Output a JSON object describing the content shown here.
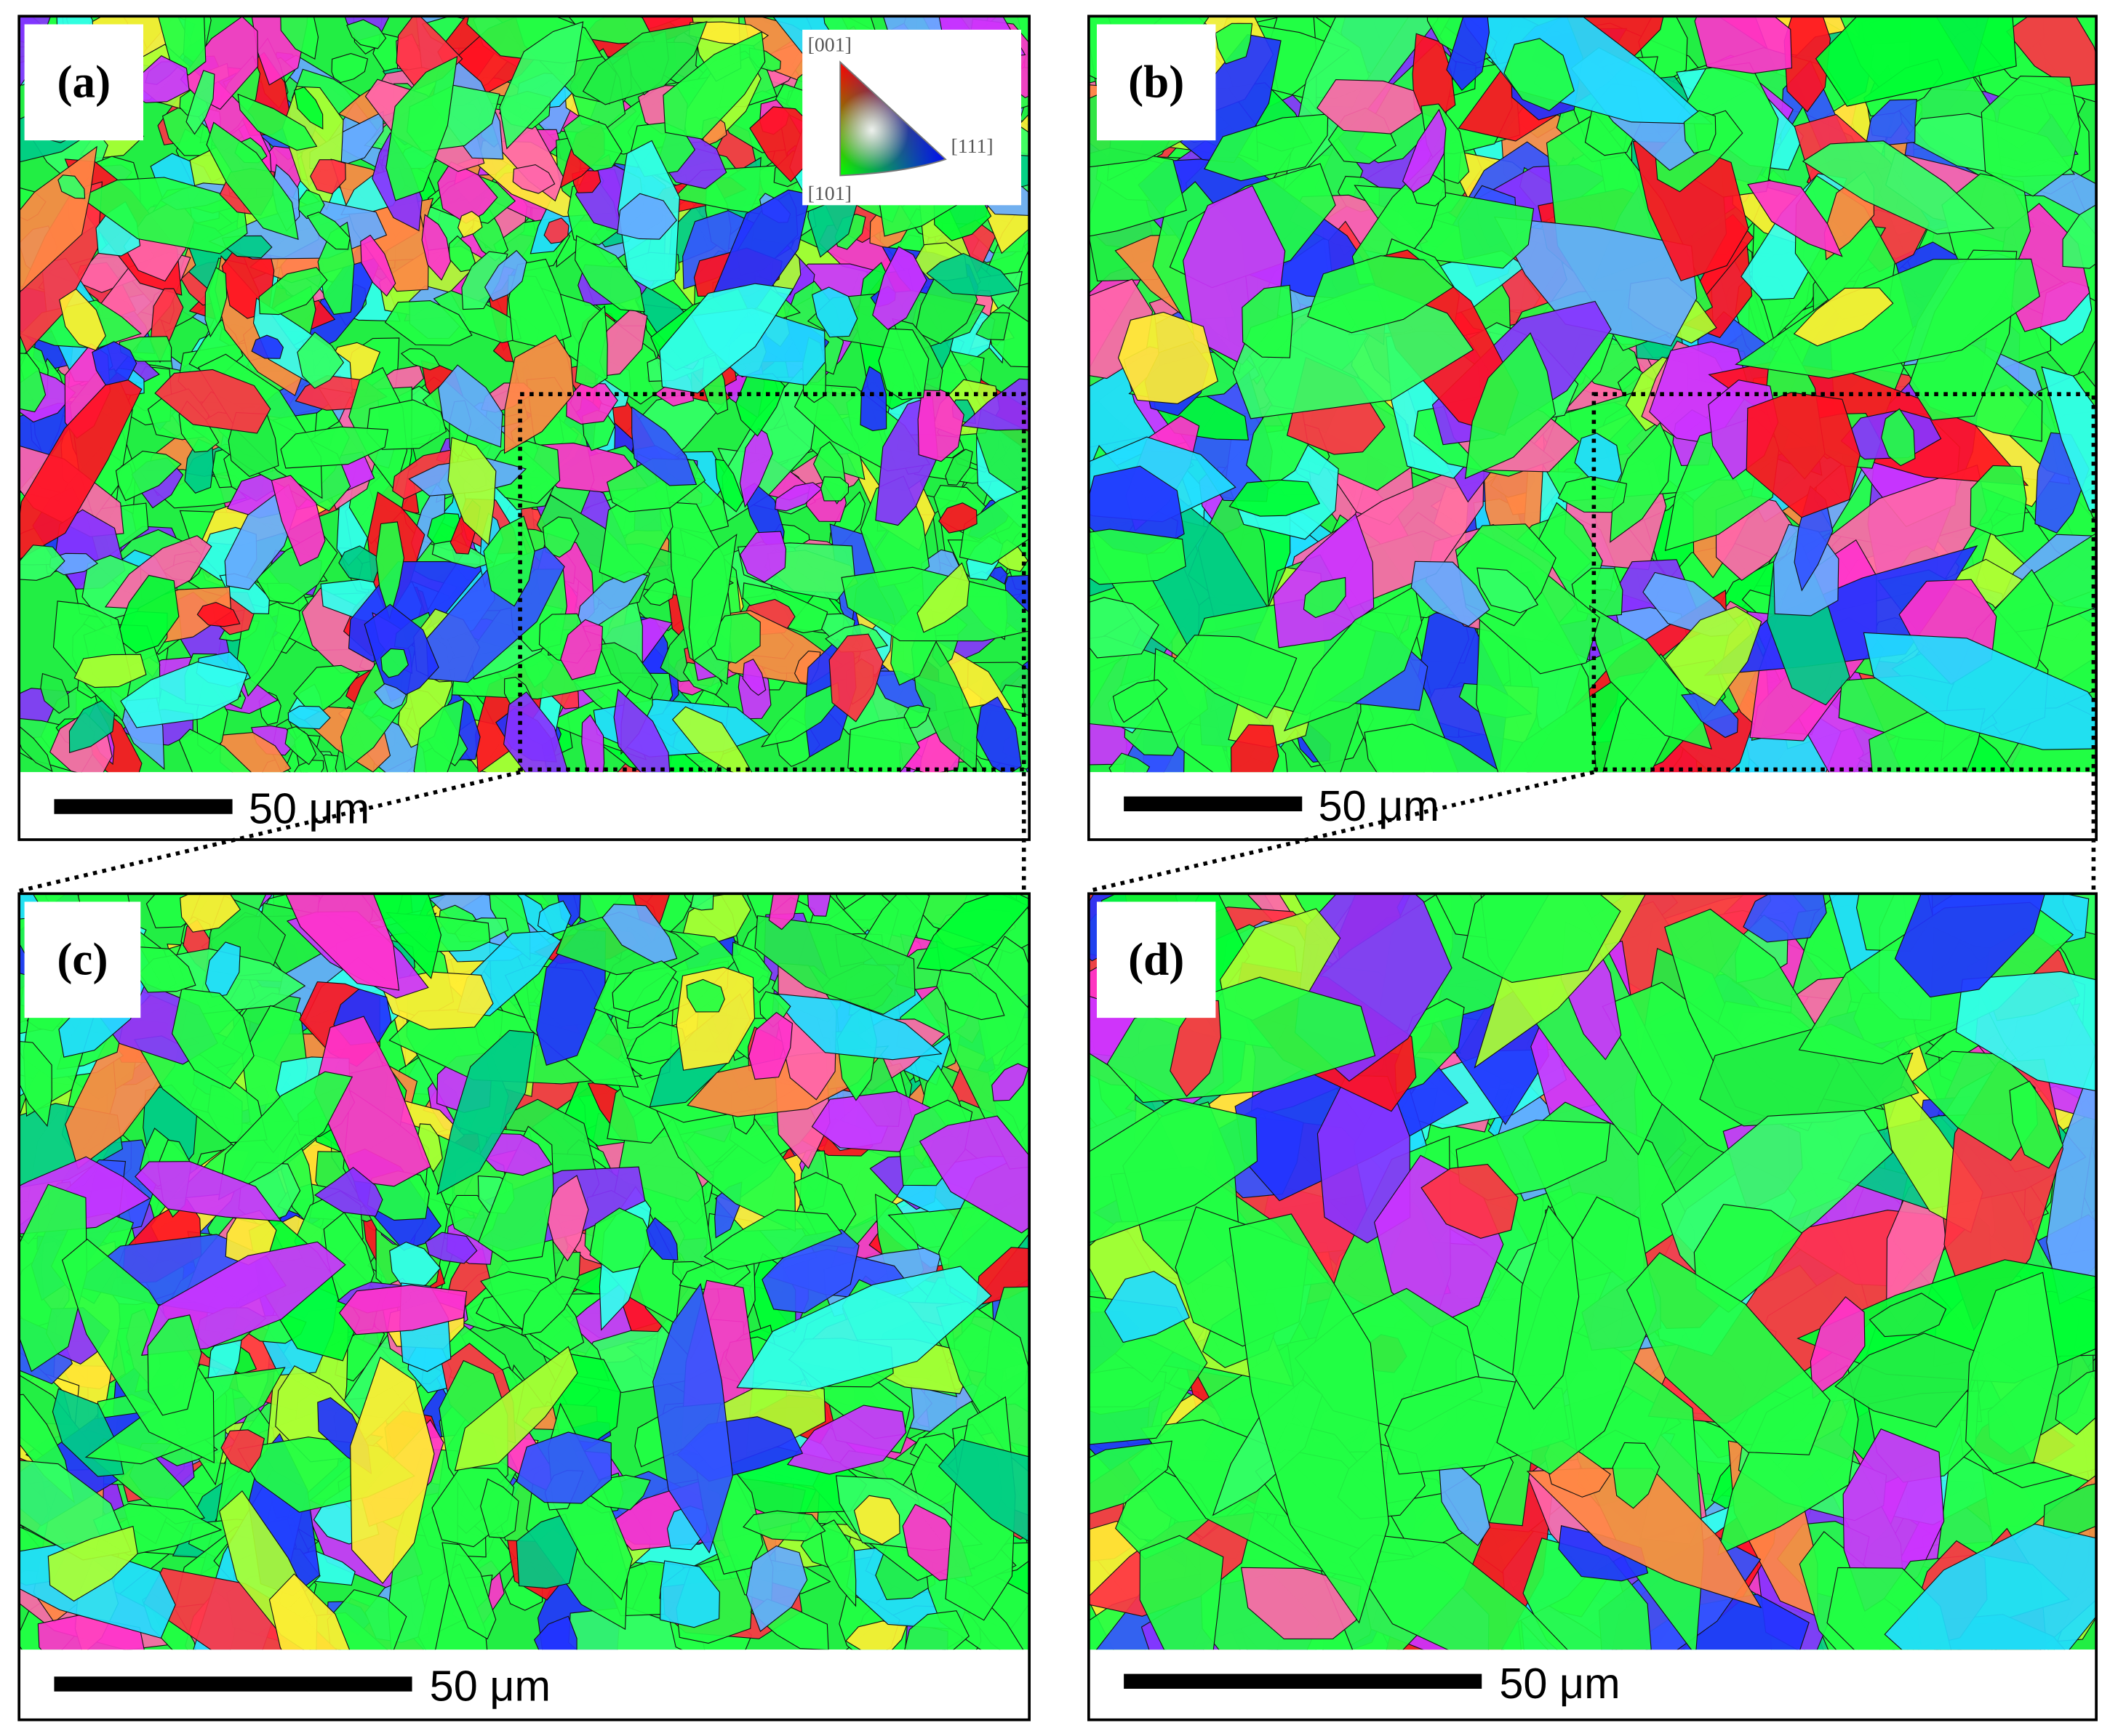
{
  "panels": [
    {
      "label": "(a)",
      "scale_bar": "50 μm"
    },
    {
      "label": "(b)",
      "scale_bar": "50 μm"
    },
    {
      "label": "(c)",
      "scale_bar": "50 μm"
    },
    {
      "label": "(d)",
      "scale_bar": "50 μm"
    }
  ],
  "ipf_legend": {
    "top": "[001]",
    "right": "[111]",
    "bottom": "[101]"
  }
}
